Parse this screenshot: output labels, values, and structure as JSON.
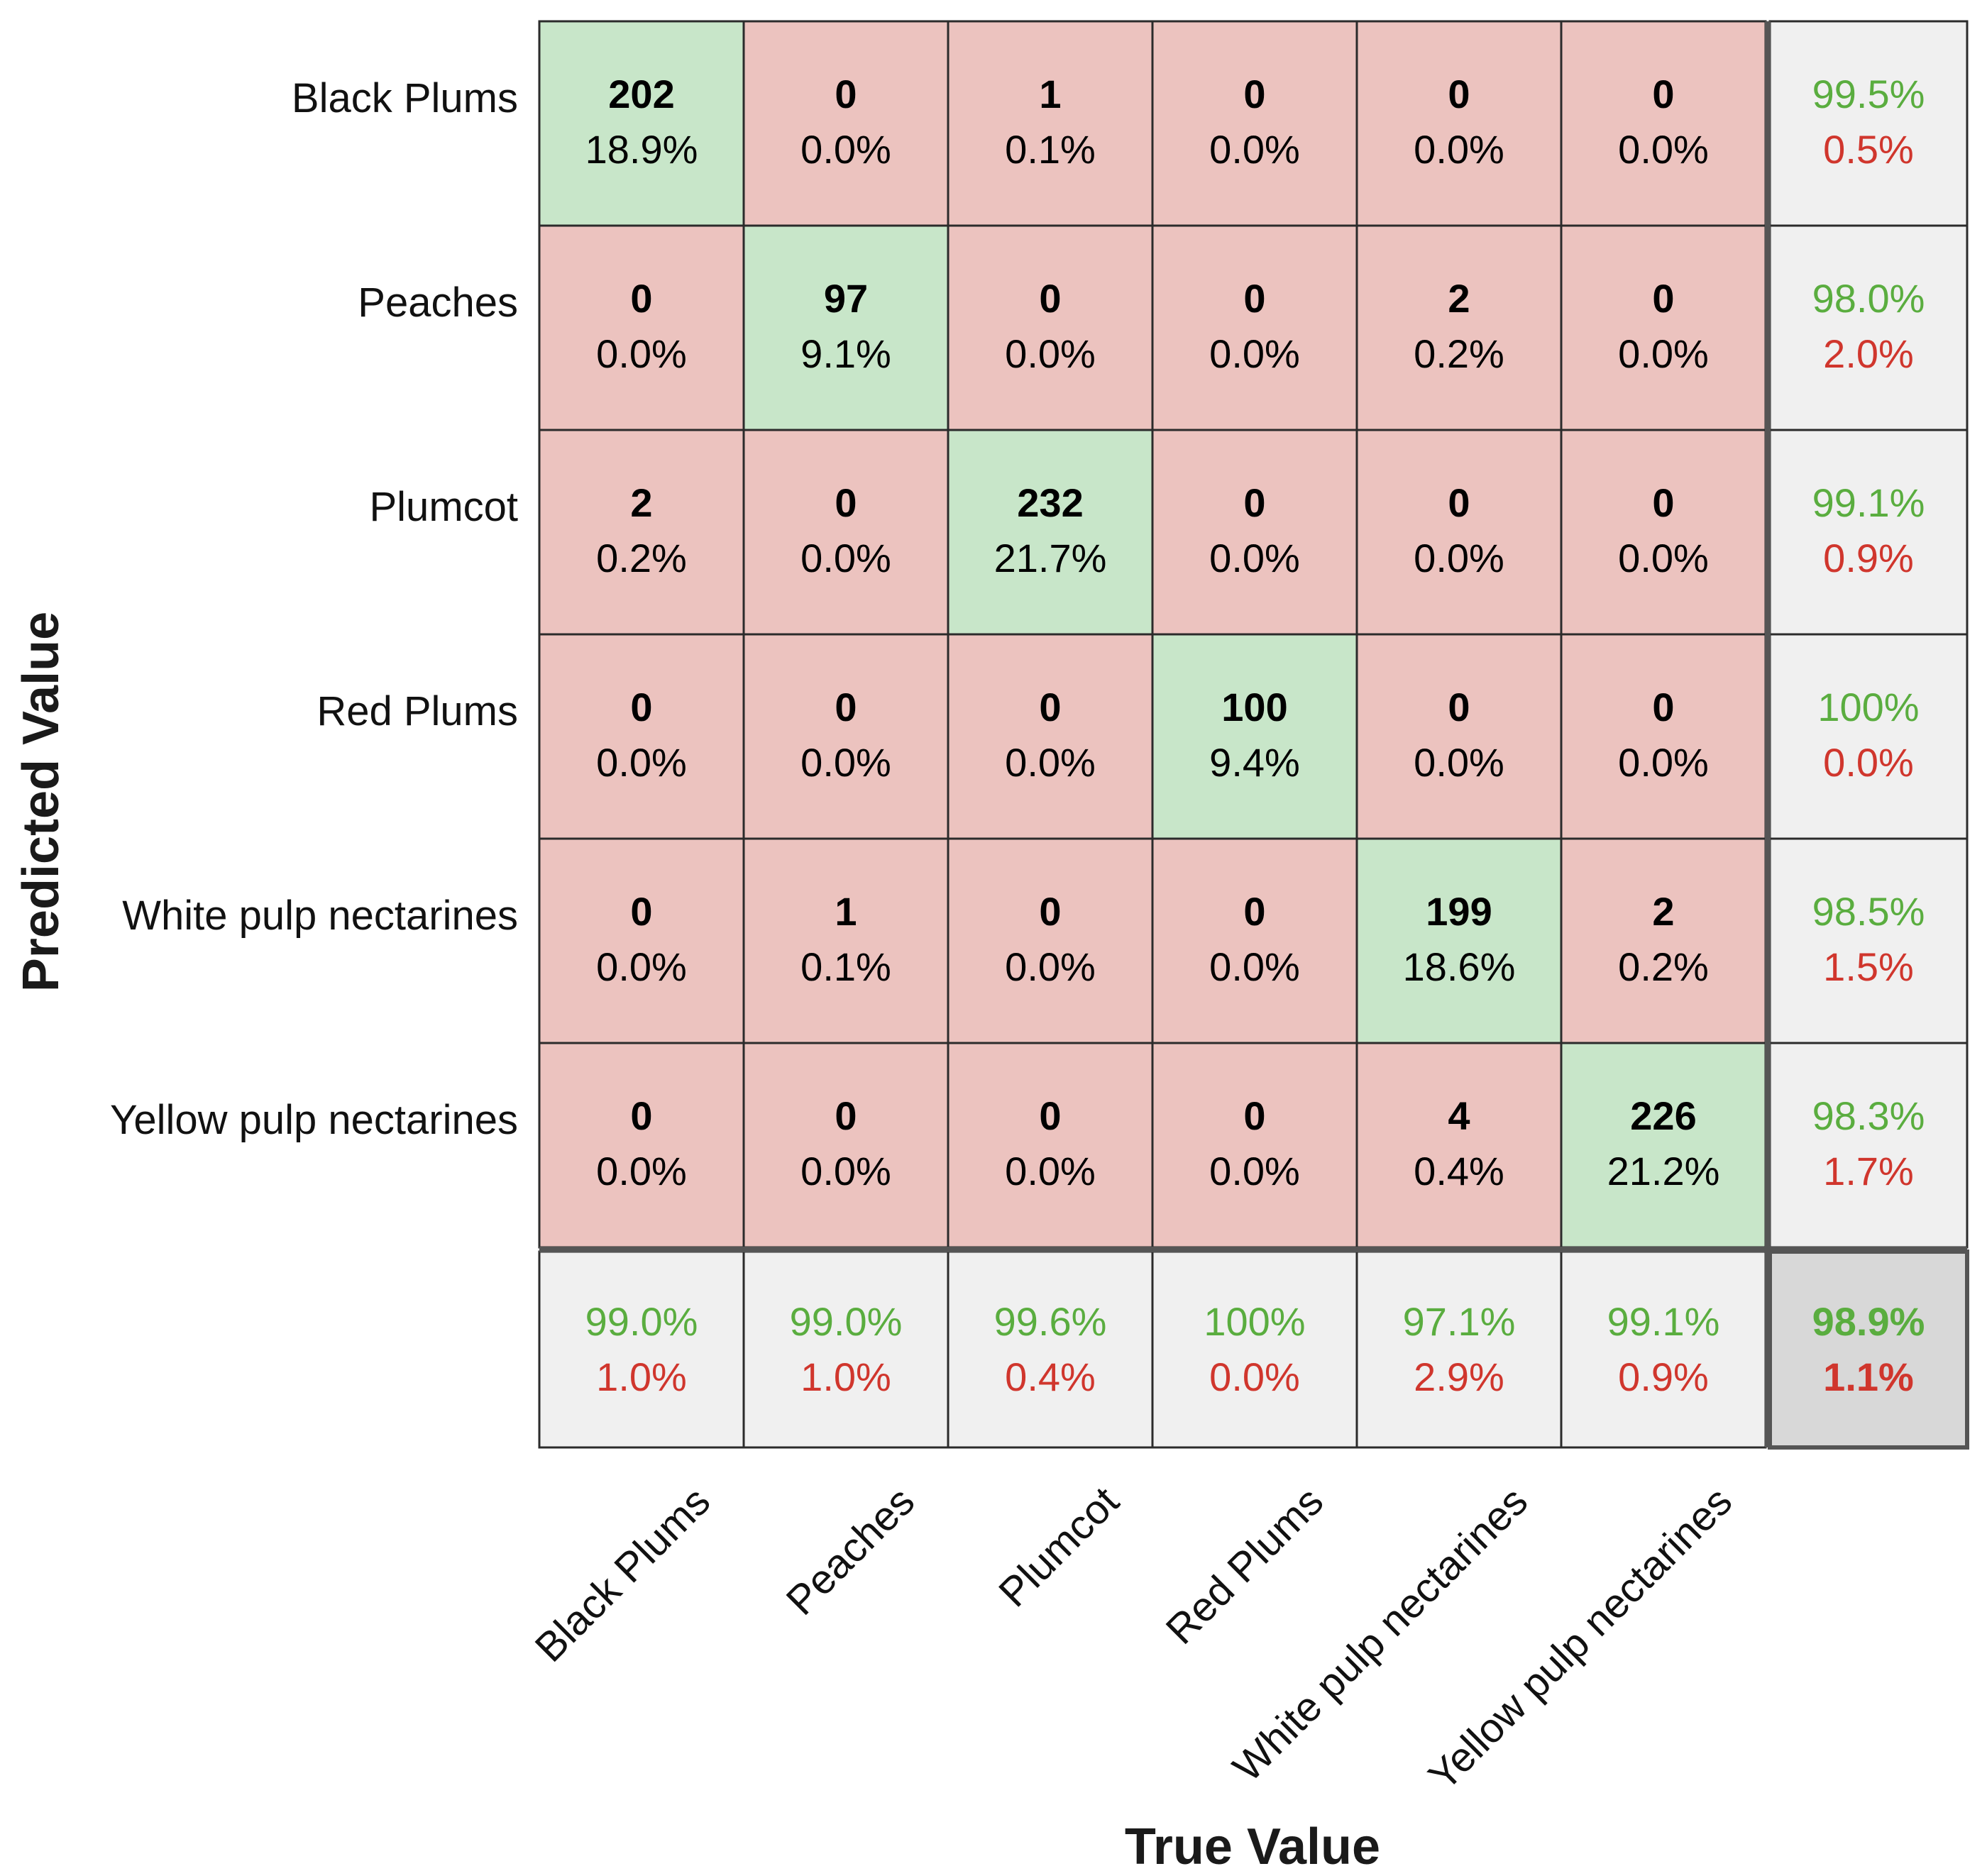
{
  "chart_data": {
    "type": "heatmap",
    "title": "",
    "xlabel": "True Value",
    "ylabel": "Predicted Value",
    "classes": [
      "Black Plums",
      "Peaches",
      "Plumcot",
      "Red Plums",
      "White pulp nectarines",
      "Yellow pulp nectarines"
    ],
    "matrix": [
      [
        202,
        0,
        1,
        0,
        0,
        0
      ],
      [
        0,
        97,
        0,
        0,
        2,
        0
      ],
      [
        2,
        0,
        232,
        0,
        0,
        0
      ],
      [
        0,
        0,
        0,
        100,
        0,
        0
      ],
      [
        0,
        1,
        0,
        0,
        199,
        2
      ],
      [
        0,
        0,
        0,
        0,
        4,
        226
      ]
    ],
    "matrix_percent": [
      [
        "18.9%",
        "0.0%",
        "0.1%",
        "0.0%",
        "0.0%",
        "0.0%"
      ],
      [
        "0.0%",
        "9.1%",
        "0.0%",
        "0.0%",
        "0.2%",
        "0.0%"
      ],
      [
        "0.2%",
        "0.0%",
        "21.7%",
        "0.0%",
        "0.0%",
        "0.0%"
      ],
      [
        "0.0%",
        "0.0%",
        "0.0%",
        "9.4%",
        "0.0%",
        "0.0%"
      ],
      [
        "0.0%",
        "0.1%",
        "0.0%",
        "0.0%",
        "18.6%",
        "0.2%"
      ],
      [
        "0.0%",
        "0.0%",
        "0.0%",
        "0.0%",
        "0.4%",
        "21.2%"
      ]
    ],
    "row_summary": [
      {
        "correct": "99.5%",
        "incorrect": "0.5%"
      },
      {
        "correct": "98.0%",
        "incorrect": "2.0%"
      },
      {
        "correct": "99.1%",
        "incorrect": "0.9%"
      },
      {
        "correct": "100%",
        "incorrect": "0.0%"
      },
      {
        "correct": "98.5%",
        "incorrect": "1.5%"
      },
      {
        "correct": "98.3%",
        "incorrect": "1.7%"
      }
    ],
    "col_summary": [
      {
        "correct": "99.0%",
        "incorrect": "1.0%"
      },
      {
        "correct": "99.0%",
        "incorrect": "1.0%"
      },
      {
        "correct": "99.6%",
        "incorrect": "0.4%"
      },
      {
        "correct": "100%",
        "incorrect": "0.0%"
      },
      {
        "correct": "97.1%",
        "incorrect": "2.9%"
      },
      {
        "correct": "99.1%",
        "incorrect": "0.9%"
      }
    ],
    "overall": {
      "correct": "98.9%",
      "incorrect": "1.1%"
    }
  },
  "colors": {
    "diagonal_fill": "#c8e6c9",
    "offdiagonal_fill": "#ecc3bf",
    "summary_fill": "#f0f0f0",
    "overall_fill": "#d8d8d8",
    "grid_line": "#2b2b2b",
    "separator_line": "#555555",
    "good_text": "#5aad3f",
    "bad_text": "#d0362d",
    "cell_text": "#000000"
  }
}
